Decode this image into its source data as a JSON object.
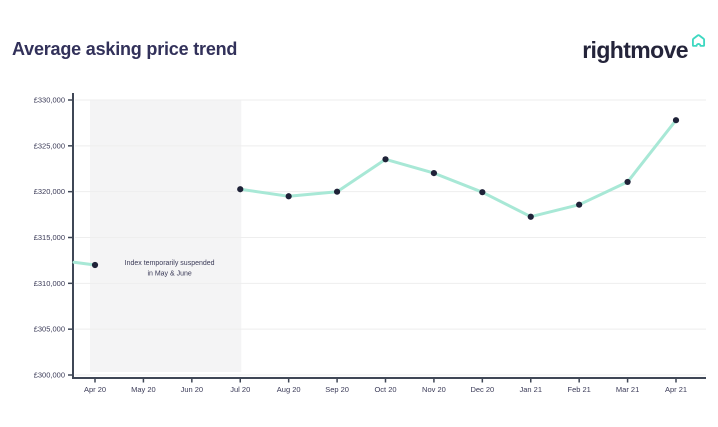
{
  "header": {
    "logo_text": "rightmove"
  },
  "chart_data": {
    "type": "line",
    "title": "Average asking price trend",
    "x": [
      "Apr 20",
      "May 20",
      "Jun 20",
      "Jul 20",
      "Aug 20",
      "Sep 20",
      "Oct 20",
      "Nov 20",
      "Dec 20",
      "Jan 21",
      "Feb 21",
      "Mar 21",
      "Apr 21"
    ],
    "series": [
      {
        "name": "Average asking price",
        "values": [
          312000,
          null,
          null,
          320265,
          319497,
          319996,
          323530,
          322025,
          319945,
          317264,
          318580,
          321064,
          327797
        ]
      }
    ],
    "ylim": [
      300000,
      330000
    ],
    "ytick_step": 5000,
    "ytick_labels": [
      "£300,000",
      "£305,000",
      "£310,000",
      "£315,000",
      "£320,000",
      "£325,000",
      "£330,000"
    ],
    "grid": true,
    "legend": "none",
    "lead_in_value": 312300,
    "annotation": {
      "lines": [
        "Index temporarily suspended",
        "in May & June"
      ],
      "band_from_label": "Apr 20",
      "band_to_label": "Jul 20"
    },
    "colors": {
      "accent_teal": "#3ed8c1",
      "line": "#a8e8d6",
      "dot": "#1f2238",
      "axis": "#3f4756",
      "grid": "#eeeeee",
      "band": "#f4f4f5",
      "label": "#3a3a57",
      "title": "#32315a",
      "logo_text": "#24243a"
    }
  }
}
